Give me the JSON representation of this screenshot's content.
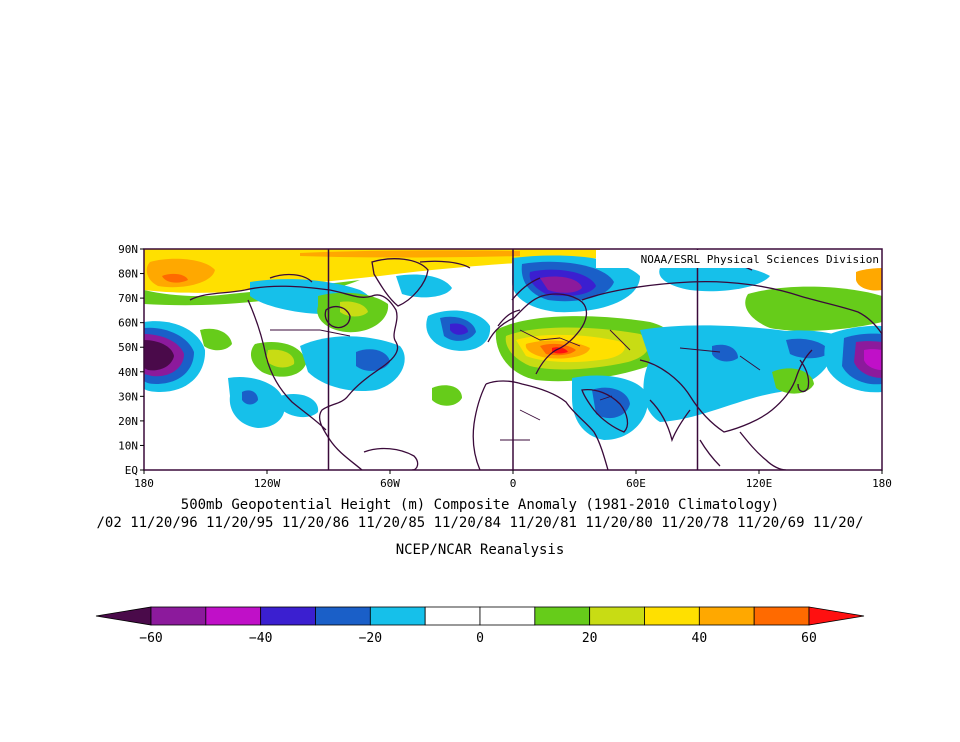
{
  "map": {
    "credit": "NOAA/ESRL Physical Sciences Division",
    "lat_ticks": [
      "90N",
      "80N",
      "70N",
      "60N",
      "50N",
      "40N",
      "30N",
      "20N",
      "10N",
      "EQ"
    ],
    "lon_ticks": [
      "180",
      "120W",
      "60W",
      "0",
      "60E",
      "120E",
      "180"
    ]
  },
  "captions": {
    "title": "500mb Geopotential Height (m) Composite Anomaly (1981-2010 Climatology)",
    "dates": "/02 11/20/96 11/20/95 11/20/86 11/20/85 11/20/84 11/20/81 11/20/80 11/20/78 11/20/69 11/20/",
    "source": "NCEP/NCAR Reanalysis"
  },
  "colorbar": {
    "tick_labels": [
      "-60",
      "-40",
      "-20",
      "0",
      "20",
      "40",
      "60"
    ],
    "colors": [
      "#4a0a4a",
      "#8c1a9c",
      "#c010c8",
      "#3b1fd0",
      "#1a5fc8",
      "#16c0ea",
      "#ffffff",
      "#ffffff",
      "#66cc1a",
      "#c8dc14",
      "#ffe000",
      "#ffa800",
      "#ff6a00",
      "#ff1010"
    ]
  },
  "anomaly_features": [
    {
      "name": "north-pacific-low",
      "lon": -172,
      "lat": 47,
      "value": -60
    },
    {
      "name": "aleutian-high",
      "lon": -170,
      "lat": 78,
      "value": 40
    },
    {
      "name": "arctic-high",
      "lon": -140,
      "lat": 85,
      "value": 40
    },
    {
      "name": "eastern-pacific-low",
      "lon": -115,
      "lat": 30,
      "value": -20
    },
    {
      "name": "western-us-ridge",
      "lon": -112,
      "lat": 45,
      "value": 20
    },
    {
      "name": "hudson-bay-ridge",
      "lon": -78,
      "lat": 63,
      "value": 20
    },
    {
      "name": "eastern-us-low",
      "lon": -65,
      "lat": 45,
      "value": -20
    },
    {
      "name": "north-atlantic-low",
      "lon": -25,
      "lat": 57,
      "value": -40
    },
    {
      "name": "subtropical-atlantic-ridge",
      "lon": -30,
      "lat": 30,
      "value": 10
    },
    {
      "name": "scandinavian-low",
      "lon": 20,
      "lat": 77,
      "value": -50
    },
    {
      "name": "central-europe-high",
      "lon": 25,
      "lat": 48,
      "value": 60
    },
    {
      "name": "west-asia-ridge",
      "lon": 55,
      "lat": 52,
      "value": 30
    },
    {
      "name": "middle-east-low",
      "lon": 50,
      "lat": 28,
      "value": -30
    },
    {
      "name": "central-asia-low",
      "lon": 95,
      "lat": 45,
      "value": -20
    },
    {
      "name": "siberian-ridge",
      "lon": 130,
      "lat": 65,
      "value": 20
    },
    {
      "name": "japan-ridge",
      "lon": 128,
      "lat": 37,
      "value": 20
    },
    {
      "name": "kamchatka-low",
      "lon": 155,
      "lat": 50,
      "value": -40
    },
    {
      "name": "dateline-low",
      "lon": 178,
      "lat": 46,
      "value": -60
    }
  ]
}
